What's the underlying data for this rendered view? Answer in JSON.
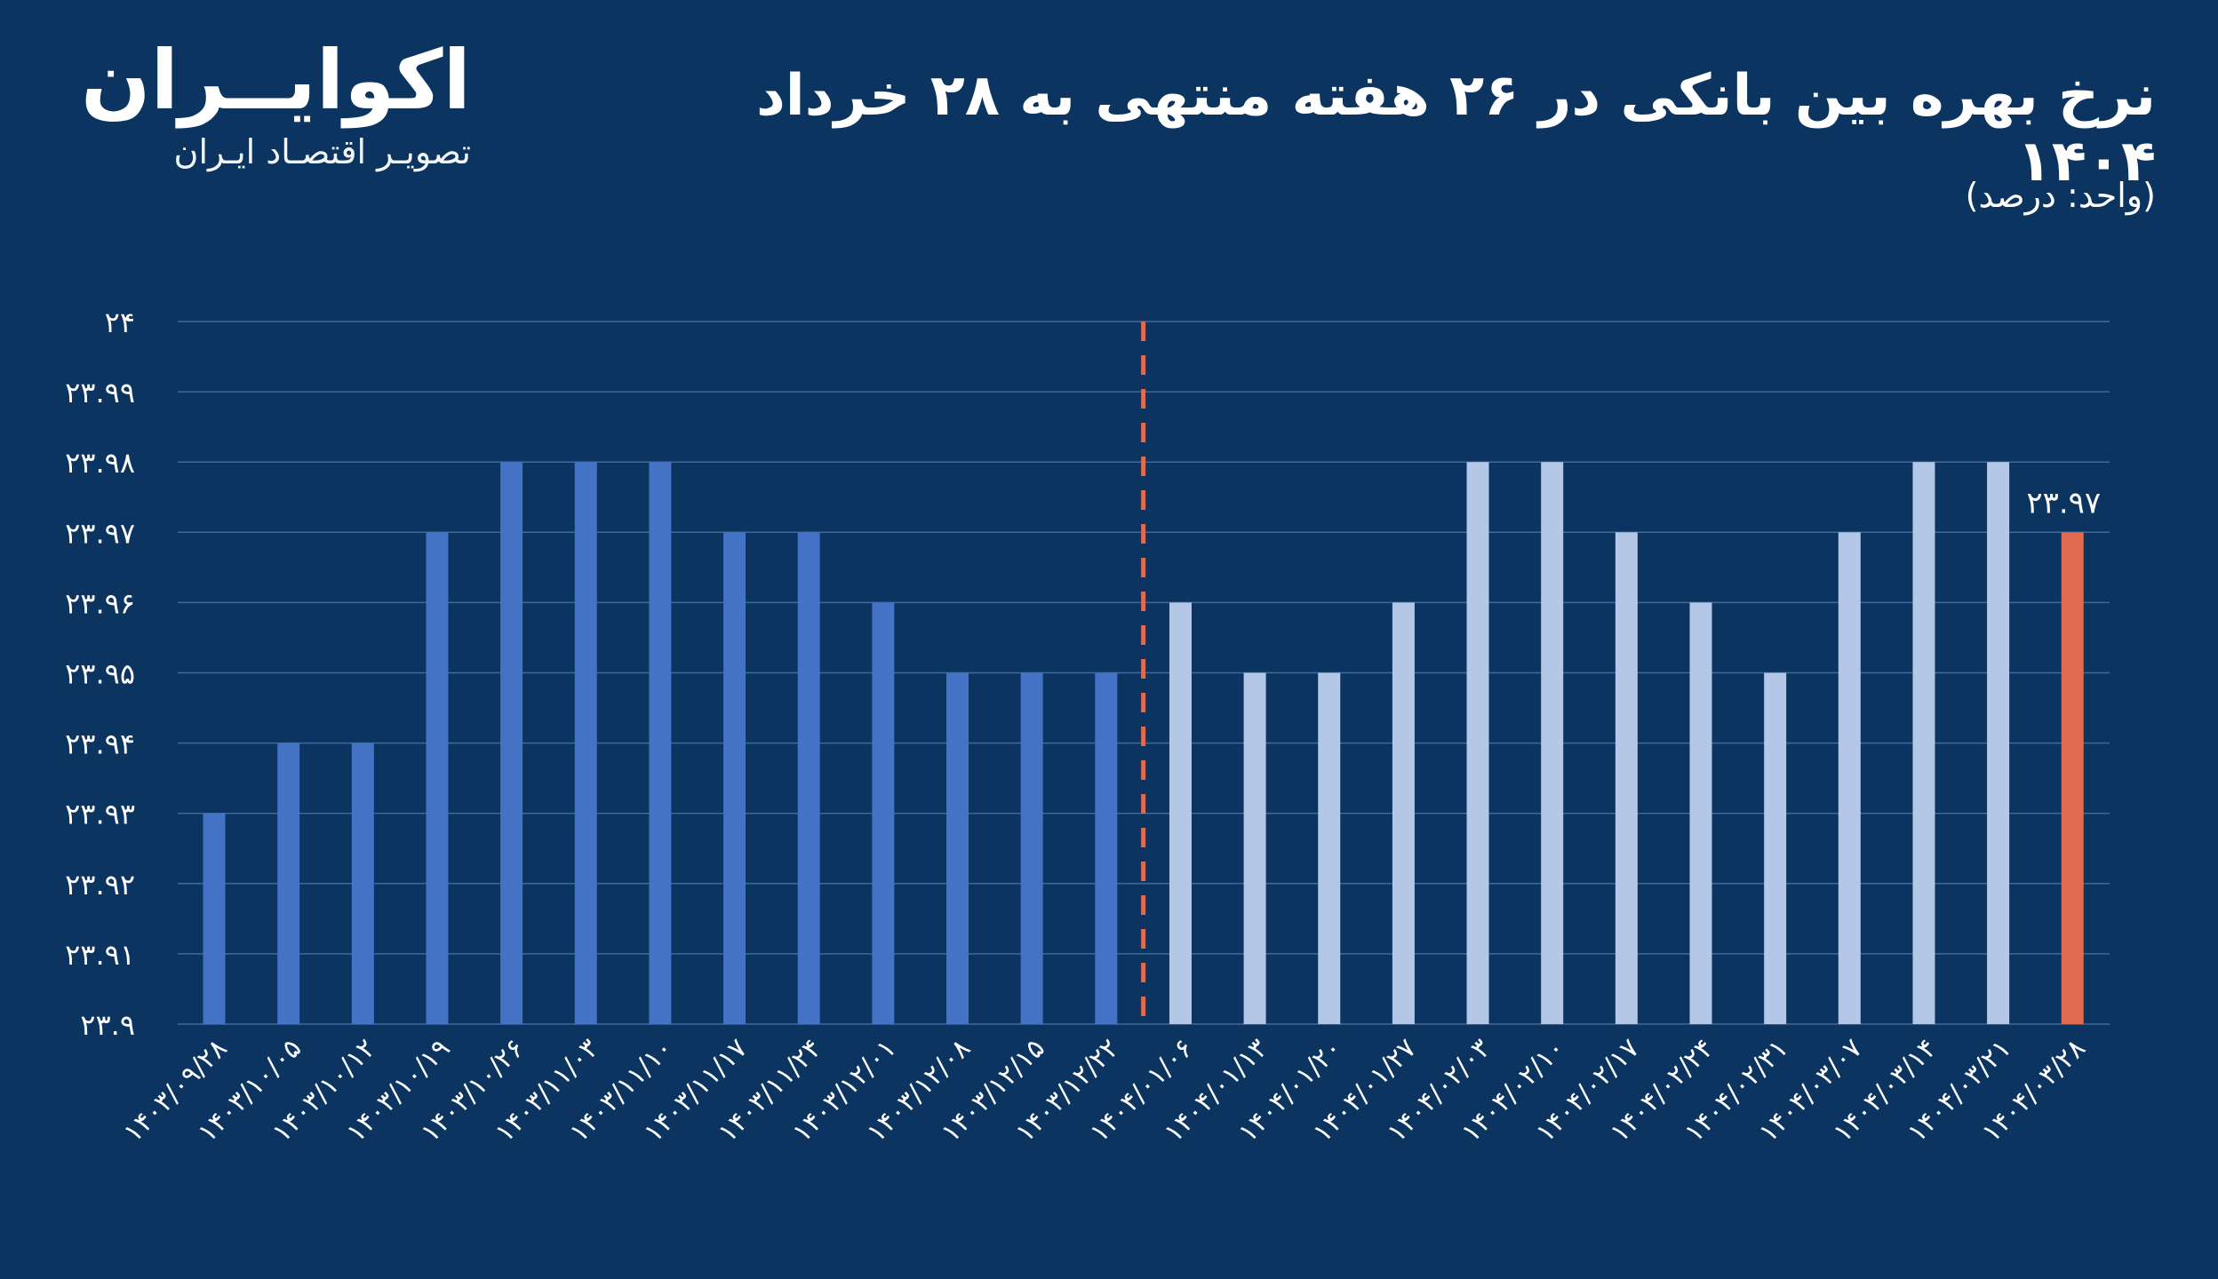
{
  "logo": {
    "name": "اکوایــران",
    "tagline": "تصویـر اقتصـاد ایـران"
  },
  "title": "نرخ بهره بین بانکی در ۲۶ هفته منتهی به ۲۸ خرداد ۱۴۰۴",
  "unit_label": "(واحد: درصد)",
  "colors": {
    "background": "#0b3461",
    "bar_1403": "#4472c4",
    "bar_1404": "#b4c7e7",
    "bar_highlight": "#e06b4f",
    "divider": "#e06b4f",
    "grid": "#3e6a99",
    "text": "#ffffff"
  },
  "chart_data": {
    "type": "bar",
    "title": "نرخ بهره بین بانکی در ۲۶ هفته منتهی به ۲۸ خرداد ۱۴۰۴",
    "ylabel": "",
    "xlabel": "",
    "ylim": [
      23.9,
      24.0
    ],
    "grid": true,
    "legend": "none",
    "yticks": [
      "۲۳.۹",
      "۲۳.۹۱",
      "۲۳.۹۲",
      "۲۳.۹۳",
      "۲۳.۹۴",
      "۲۳.۹۵",
      "۲۳.۹۶",
      "۲۳.۹۷",
      "۲۳.۹۸",
      "۲۳.۹۹",
      "۲۴"
    ],
    "categories": [
      "۱۴۰۳/۰۹/۲۸",
      "۱۴۰۳/۱۰/۰۵",
      "۱۴۰۳/۱۰/۱۲",
      "۱۴۰۳/۱۰/۱۹",
      "۱۴۰۳/۱۰/۲۶",
      "۱۴۰۳/۱۱/۰۳",
      "۱۴۰۳/۱۱/۱۰",
      "۱۴۰۳/۱۱/۱۷",
      "۱۴۰۳/۱۱/۲۴",
      "۱۴۰۳/۱۲/۰۱",
      "۱۴۰۳/۱۲/۰۸",
      "۱۴۰۳/۱۲/۱۵",
      "۱۴۰۳/۱۲/۲۲",
      "۱۴۰۴/۰۱/۰۶",
      "۱۴۰۴/۰۱/۱۳",
      "۱۴۰۴/۰۱/۲۰",
      "۱۴۰۴/۰۱/۲۷",
      "۱۴۰۴/۰۲/۰۳",
      "۱۴۰۴/۰۲/۱۰",
      "۱۴۰۴/۰۲/۱۷",
      "۱۴۰۴/۰۲/۲۴",
      "۱۴۰۴/۰۲/۳۱",
      "۱۴۰۴/۰۳/۰۷",
      "۱۴۰۴/۰۳/۱۴",
      "۱۴۰۴/۰۳/۲۱",
      "۱۴۰۴/۰۳/۲۸"
    ],
    "values": [
      23.93,
      23.94,
      23.94,
      23.97,
      23.98,
      23.98,
      23.98,
      23.97,
      23.97,
      23.96,
      23.95,
      23.95,
      23.95,
      23.96,
      23.95,
      23.95,
      23.96,
      23.98,
      23.98,
      23.97,
      23.96,
      23.95,
      23.97,
      23.98,
      23.98,
      23.97
    ],
    "year_1403_count": 13,
    "highlight_index": 25,
    "data_labels": [
      {
        "index": 25,
        "text": "۲۳.۹۷"
      }
    ]
  }
}
